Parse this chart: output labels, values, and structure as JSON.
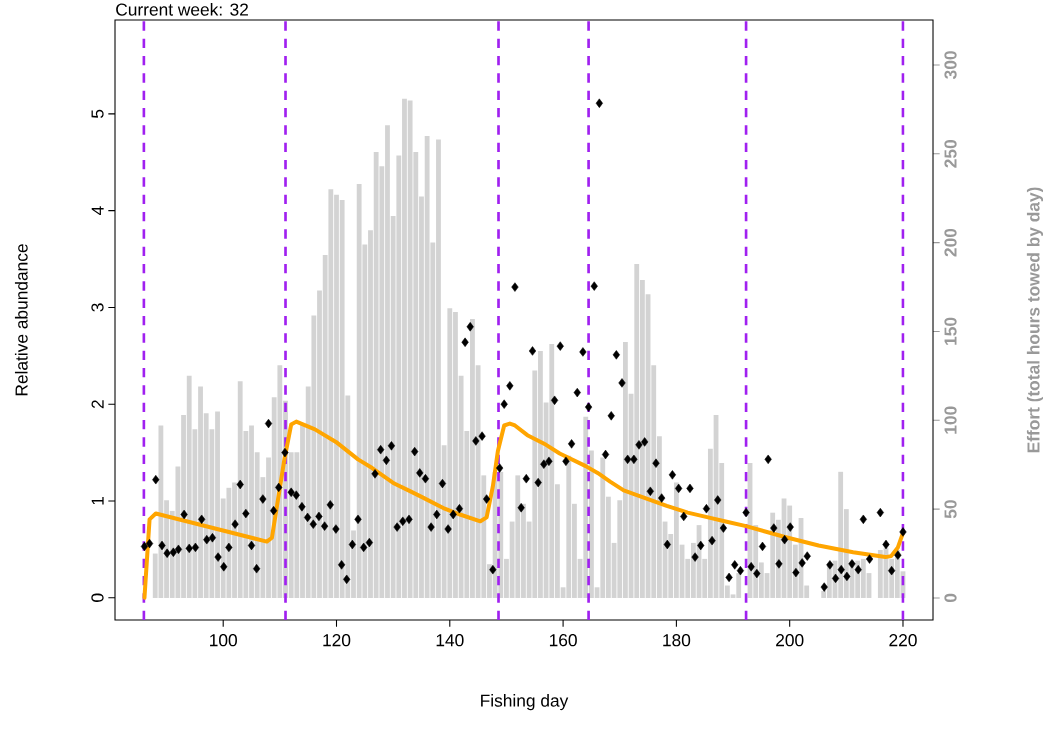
{
  "chart_data": {
    "type": "scatter",
    "title": "Current week: 32",
    "xlabel": "Fishing day",
    "ylabel": "Relative abundance",
    "y2label": "Effort (total hours towed by day)",
    "xlim": [
      80.9,
      225.3
    ],
    "xticks": [
      100,
      120,
      140,
      160,
      180,
      200,
      220
    ],
    "ylim": [
      -0.23,
      5.97
    ],
    "yticks": [
      0,
      1,
      2,
      3,
      4,
      5
    ],
    "y2lim": [
      -12.4,
      325.3
    ],
    "y2ticks": [
      0,
      50,
      100,
      150,
      200,
      250,
      300
    ],
    "series": [
      {
        "type": "bar",
        "axis": "y2",
        "color": "#d3d3d3",
        "x": [
          88,
          89,
          90,
          91,
          92,
          93,
          94,
          95,
          96,
          97,
          98,
          99,
          100,
          101,
          102,
          103,
          104,
          105,
          106,
          107,
          108,
          109,
          110,
          111,
          112,
          113,
          114,
          115,
          116,
          117,
          118,
          119,
          120,
          121,
          122,
          123,
          124,
          125,
          126,
          127,
          128,
          129,
          130,
          131,
          132,
          133,
          134,
          135,
          136,
          137,
          138,
          139,
          140,
          141,
          142,
          143,
          144,
          145,
          146,
          147,
          148,
          149,
          150,
          151,
          152,
          153,
          154,
          155,
          156,
          157,
          158,
          159,
          160,
          161,
          162,
          163,
          164,
          165,
          166,
          167,
          168,
          169,
          170,
          171,
          172,
          173,
          174,
          175,
          176,
          177,
          178,
          179,
          180,
          181,
          182,
          183,
          184,
          185,
          186,
          187,
          188,
          189,
          190,
          191,
          193,
          194,
          195,
          196,
          197,
          198,
          199,
          200,
          201,
          202,
          203,
          206,
          207,
          208,
          209,
          210,
          211,
          212,
          213,
          214,
          216,
          217,
          218,
          219,
          220
        ],
        "values": [
          25,
          97,
          55,
          49,
          74,
          103,
          125,
          95,
          119,
          104,
          95,
          105,
          56,
          62,
          65,
          122,
          94,
          97,
          82,
          68,
          79,
          113,
          131,
          111,
          82,
          82,
          98,
          119,
          159,
          173,
          193,
          230,
          227,
          224,
          114,
          38,
          233,
          199,
          207,
          251,
          243,
          266,
          215,
          249,
          281,
          280,
          251,
          226,
          260,
          200,
          258,
          86,
          163,
          161,
          125,
          94,
          157,
          131,
          69,
          19,
          71,
          71,
          22,
          43,
          69,
          53,
          43,
          128,
          139,
          110,
          143,
          64,
          6,
          80,
          53,
          22,
          102,
          83,
          6,
          79,
          57,
          31,
          55,
          144,
          115,
          188,
          179,
          171,
          131,
          91,
          43,
          36,
          65,
          30,
          22,
          31,
          41,
          22,
          84,
          103,
          76,
          7,
          2,
          14,
          76,
          41,
          20,
          14,
          48,
          44,
          56,
          52,
          30,
          45,
          7,
          4,
          19,
          21,
          71,
          50,
          21,
          21,
          22,
          14,
          27,
          28,
          22,
          27,
          15
        ]
      },
      {
        "color": "#000000",
        "marker": "diamond",
        "x": [
          86.1,
          87.0,
          88.1,
          89.2,
          90.1,
          91.2,
          92.1,
          93.1,
          94.0,
          95.1,
          96.2,
          97.1,
          98.1,
          99.1,
          100.1,
          101.0,
          102.1,
          103.0,
          104.0,
          105.0,
          105.9,
          107.0,
          108.0,
          108.9,
          109.8,
          110.9,
          112.0,
          112.9,
          113.9,
          114.9,
          115.9,
          116.9,
          117.9,
          118.9,
          119.9,
          120.9,
          121.8,
          122.8,
          123.8,
          124.8,
          125.8,
          126.8,
          127.8,
          128.8,
          129.7,
          130.7,
          131.7,
          132.8,
          133.8,
          134.7,
          135.7,
          136.7,
          137.7,
          138.7,
          139.7,
          140.6,
          141.7,
          142.7,
          143.6,
          144.6,
          145.7,
          146.5,
          147.6,
          148.8,
          149.6,
          150.6,
          151.5,
          152.6,
          153.5,
          154.6,
          155.6,
          156.6,
          157.5,
          158.5,
          159.5,
          160.5,
          161.5,
          162.5,
          163.5,
          164.5,
          165.5,
          166.4,
          167.5,
          168.5,
          169.4,
          170.4,
          171.4,
          172.5,
          173.4,
          174.4,
          175.4,
          176.4,
          177.4,
          178.4,
          179.3,
          180.4,
          181.3,
          182.4,
          183.3,
          184.3,
          185.3,
          186.3,
          187.3,
          188.3,
          189.3,
          190.3,
          191.3,
          192.3,
          193.2,
          194.2,
          195.2,
          196.2,
          197.2,
          198.1,
          199.1,
          200.1,
          201.1,
          202.2,
          203.1,
          206.1,
          207.1,
          208.1,
          209.1,
          210.1,
          211.0,
          212.1,
          213.0,
          214.1,
          216.0,
          217.0,
          218.0,
          219.1,
          220.0
        ],
        "values": [
          0.53,
          0.56,
          1.22,
          0.54,
          0.46,
          0.47,
          0.5,
          0.86,
          0.51,
          0.52,
          0.81,
          0.6,
          0.62,
          0.42,
          0.32,
          0.52,
          0.76,
          1.17,
          0.87,
          0.54,
          0.3,
          1.02,
          1.8,
          0.9,
          1.14,
          1.5,
          1.09,
          1.06,
          0.94,
          0.83,
          0.76,
          0.84,
          0.74,
          0.96,
          0.71,
          0.34,
          0.19,
          0.55,
          0.81,
          0.52,
          0.57,
          1.28,
          1.53,
          1.42,
          1.57,
          0.73,
          0.79,
          0.81,
          1.51,
          1.29,
          1.23,
          0.73,
          0.86,
          1.18,
          0.71,
          0.86,
          0.92,
          2.64,
          2.8,
          1.62,
          1.67,
          1.02,
          0.29,
          1.34,
          2.0,
          2.19,
          3.21,
          0.93,
          1.23,
          2.55,
          1.19,
          1.38,
          1.41,
          2.04,
          2.6,
          1.41,
          1.59,
          2.12,
          2.54,
          1.97,
          3.22,
          5.11,
          1.48,
          1.88,
          2.51,
          2.22,
          1.43,
          1.43,
          1.58,
          1.61,
          1.1,
          1.39,
          1.03,
          0.55,
          1.27,
          1.13,
          0.84,
          1.13,
          0.42,
          0.54,
          0.92,
          0.59,
          1.01,
          0.72,
          0.21,
          0.34,
          0.28,
          0.88,
          0.32,
          0.25,
          0.53,
          1.43,
          0.72,
          0.35,
          0.6,
          0.73,
          0.26,
          0.36,
          0.43,
          0.11,
          0.34,
          0.2,
          0.29,
          0.22,
          0.35,
          0.29,
          0.81,
          0.4,
          0.88,
          0.55,
          0.28,
          0.44,
          0.68
        ]
      },
      {
        "type": "line",
        "color": "#ffa500",
        "x": [
          86.1,
          87.0,
          88.1,
          107.7,
          108.6,
          110.8,
          112.0,
          112.9,
          116.2,
          119.9,
          123.8,
          126.3,
          130.2,
          132.7,
          135.1,
          139.1,
          141.8,
          145.4,
          146.5,
          147.6,
          148.5,
          149.6,
          150.6,
          151.5,
          153.7,
          157.0,
          159.4,
          164.0,
          166.1,
          168.3,
          170.7,
          174.0,
          178.3,
          182.0,
          185.6,
          188.5,
          192.3,
          199.0,
          205.1,
          211.2,
          216.9,
          217.9,
          219.1,
          220.0
        ],
        "values": [
          0.0,
          0.81,
          0.87,
          0.58,
          0.62,
          1.43,
          1.79,
          1.82,
          1.74,
          1.61,
          1.43,
          1.34,
          1.18,
          1.11,
          1.04,
          0.92,
          0.86,
          0.79,
          0.83,
          1.15,
          1.52,
          1.78,
          1.8,
          1.78,
          1.68,
          1.58,
          1.49,
          1.36,
          1.29,
          1.2,
          1.11,
          1.04,
          0.95,
          0.88,
          0.83,
          0.79,
          0.74,
          0.63,
          0.54,
          0.47,
          0.42,
          0.43,
          0.52,
          0.67
        ]
      }
    ],
    "ref_lines": [
      {
        "axis": "x",
        "value": 86,
        "color": "#a020f0",
        "line_style": "dashed"
      },
      {
        "axis": "x",
        "value": 111,
        "color": "#a020f0",
        "line_style": "dashed"
      },
      {
        "axis": "x",
        "value": 148.6,
        "color": "#a020f0",
        "line_style": "dashed"
      },
      {
        "axis": "x",
        "value": 164.5,
        "color": "#a020f0",
        "line_style": "dashed"
      },
      {
        "axis": "x",
        "value": 192.3,
        "color": "#a020f0",
        "line_style": "dashed"
      },
      {
        "axis": "x",
        "value": 220,
        "color": "#a020f0",
        "line_style": "dashed"
      }
    ]
  }
}
